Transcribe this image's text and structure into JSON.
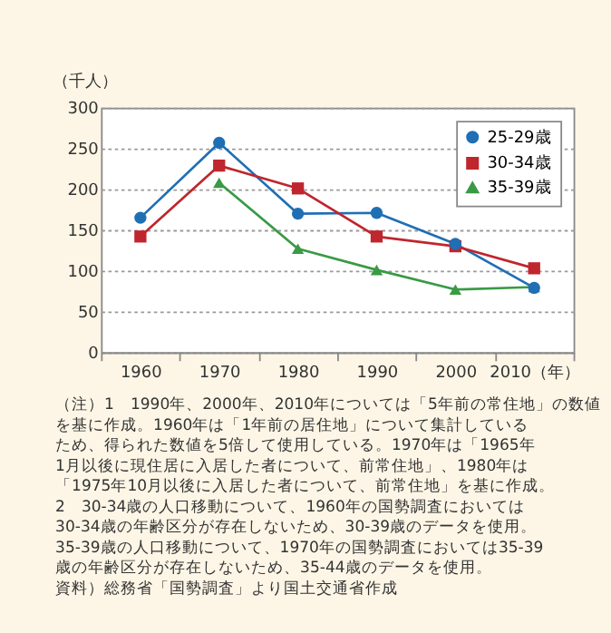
{
  "chart_data": {
    "type": "line",
    "ylabel": "（千人）",
    "categories": [
      "1960",
      "1970",
      "1980",
      "1990",
      "2000",
      "2010（年）"
    ],
    "series": [
      {
        "name": "25-29歳",
        "color": "#1f6fb4",
        "marker": "circle",
        "values": [
          165,
          257,
          170,
          171,
          133,
          79
        ]
      },
      {
        "name": "30-34歳",
        "color": "#c0262d",
        "marker": "square",
        "values": [
          142,
          229,
          201,
          142,
          130,
          103
        ]
      },
      {
        "name": "35-39歳",
        "color": "#3a9a45",
        "marker": "triangle",
        "values": [
          null,
          208,
          127,
          101,
          77,
          80
        ]
      }
    ],
    "ylim": [
      0,
      300
    ],
    "yticks": [
      0,
      50,
      100,
      150,
      200,
      250,
      300
    ],
    "grid": "y",
    "legend": "top right",
    "line_style": "solid",
    "annotations": [
      "（注）1　1990年、2000年、2010年については「5年前の常住地」の数値",
      "を基に作成。1960年は「1年前の居住地」について集計している",
      "ため、得られた数値を5倍して使用している。1970年は「1965年",
      "1月以後に現住居に入居した者について、前常住地」、1980年は",
      "「1975年10月以後に入居した者について、前常住地」を基に作成。",
      "2　30-34歳の人口移動について、1960年の国勢調査においては",
      "30-34歳の年齢区分が存在しないため、30-39歳のデータを使用。",
      "35-39歳の人口移動について、1970年の国勢調査においては35-39",
      "歳の年齢区分が存在しないため、35-44歳のデータを使用。",
      "資料）総務省「国勢調査」より国土交通省作成"
    ]
  }
}
